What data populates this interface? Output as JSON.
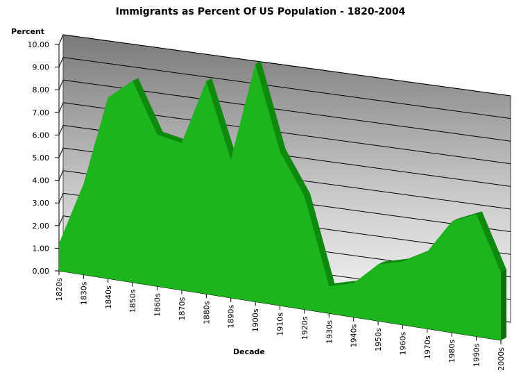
{
  "chart_data": {
    "type": "area",
    "title": "Immigrants as Percent Of US Population - 1820-2004",
    "xlabel": "Decade",
    "ylabel": "Percent",
    "ylim": [
      0,
      10
    ],
    "yticks": [
      "0.00",
      "1.00",
      "2.00",
      "3.00",
      "4.00",
      "5.00",
      "6.00",
      "7.00",
      "8.00",
      "9.00",
      "10.00"
    ],
    "categories": [
      "1820s",
      "1830s",
      "1840s",
      "1850s",
      "1860s",
      "1870s",
      "1880s",
      "1890s",
      "1900s",
      "1910s",
      "1920s",
      "1930s",
      "1940s",
      "1950s",
      "1960s",
      "1970s",
      "1980s",
      "1990s",
      "2000s"
    ],
    "values": [
      1.2,
      4.0,
      8.0,
      8.9,
      6.7,
      6.5,
      9.4,
      6.1,
      10.5,
      6.8,
      5.0,
      1.2,
      1.5,
      2.5,
      2.8,
      3.4,
      4.9,
      5.4,
      3.0
    ],
    "series_color": "#1db51d",
    "grid": true,
    "style": "3d"
  }
}
